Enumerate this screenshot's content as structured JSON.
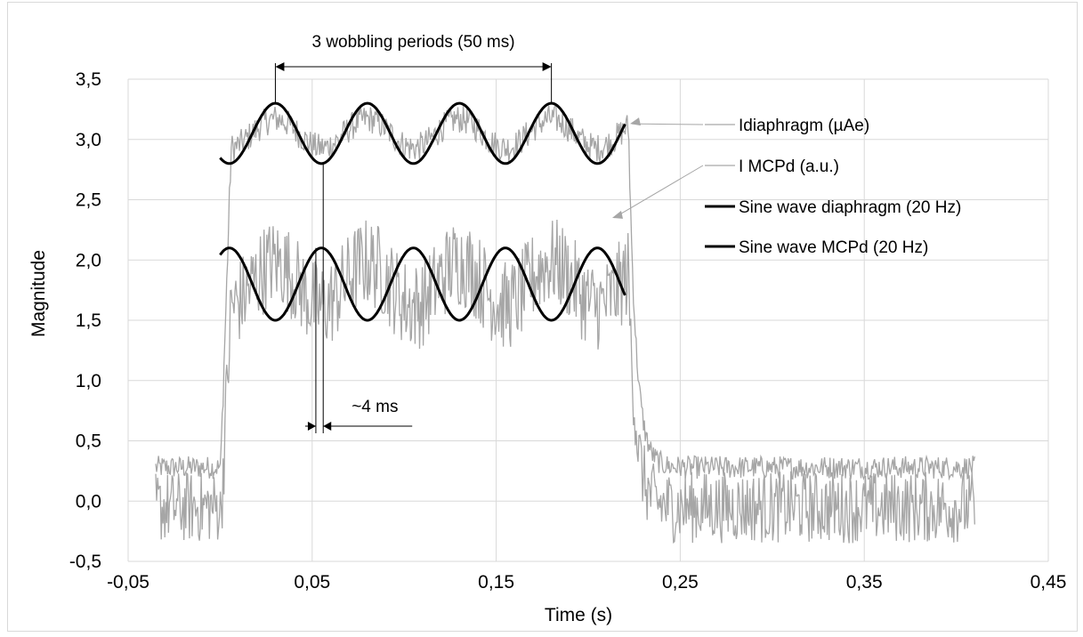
{
  "chart_data": {
    "type": "line",
    "title": "",
    "xlabel": "Time (s)",
    "ylabel": "Magnitude",
    "xlim": [
      -0.05,
      0.45
    ],
    "ylim": [
      -0.5,
      3.5
    ],
    "x_ticks": [
      "-0,05",
      "0,05",
      "0,15",
      "0,25",
      "0,35",
      "0,45"
    ],
    "x_tick_values": [
      -0.05,
      0.05,
      0.15,
      0.25,
      0.35,
      0.45
    ],
    "y_ticks": [
      "-0,5",
      "0,0",
      "0,5",
      "1,0",
      "1,5",
      "2,0",
      "2,5",
      "3,0",
      "3,5"
    ],
    "y_tick_values": [
      -0.5,
      0.0,
      0.5,
      1.0,
      1.5,
      2.0,
      2.5,
      3.0,
      3.5
    ],
    "grid": true,
    "legend_position": "right",
    "series": [
      {
        "name": "Idiaphragm (µAe)",
        "style": "noisy-step",
        "color": "#a6a6a6",
        "x_range": [
          -0.035,
          0.41
        ],
        "baseline": 0.28,
        "plateau": 3.05,
        "rise_time": 0.0,
        "fall_time": 0.222,
        "plateau_wobble": {
          "frequency_hz": 20,
          "amplitude": 0.2
        },
        "noise": 0.08
      },
      {
        "name": "I MCPd (a.u.)",
        "style": "noisy-step",
        "color": "#a6a6a6",
        "x_range": [
          -0.035,
          0.41
        ],
        "baseline": -0.05,
        "plateau": 1.8,
        "rise_time": 0.0,
        "fall_time": 0.222,
        "plateau_wobble": {
          "frequency_hz": 20,
          "amplitude": 0.3
        },
        "noise": 0.25
      },
      {
        "name": "Sine wave diaphragm (20 Hz)",
        "style": "sine",
        "color": "#000000",
        "x_range": [
          0.0,
          0.22
        ],
        "frequency_hz": 20,
        "amplitude": 0.25,
        "offset": 3.05,
        "peak_at": 0.03
      },
      {
        "name": "Sine wave MCPd (20 Hz)",
        "style": "sine",
        "color": "#000000",
        "x_range": [
          0.0,
          0.22
        ],
        "frequency_hz": 20,
        "amplitude": 0.3,
        "offset": 1.8,
        "peak_at": 0.005
      }
    ],
    "annotations": [
      {
        "text": "3 wobbling periods (50 ms)",
        "x_start": 0.03,
        "x_end": 0.18,
        "y": 3.6
      },
      {
        "text": "~4 ms",
        "x_start": 0.052,
        "x_end": 0.056,
        "y": 0.63
      }
    ]
  }
}
